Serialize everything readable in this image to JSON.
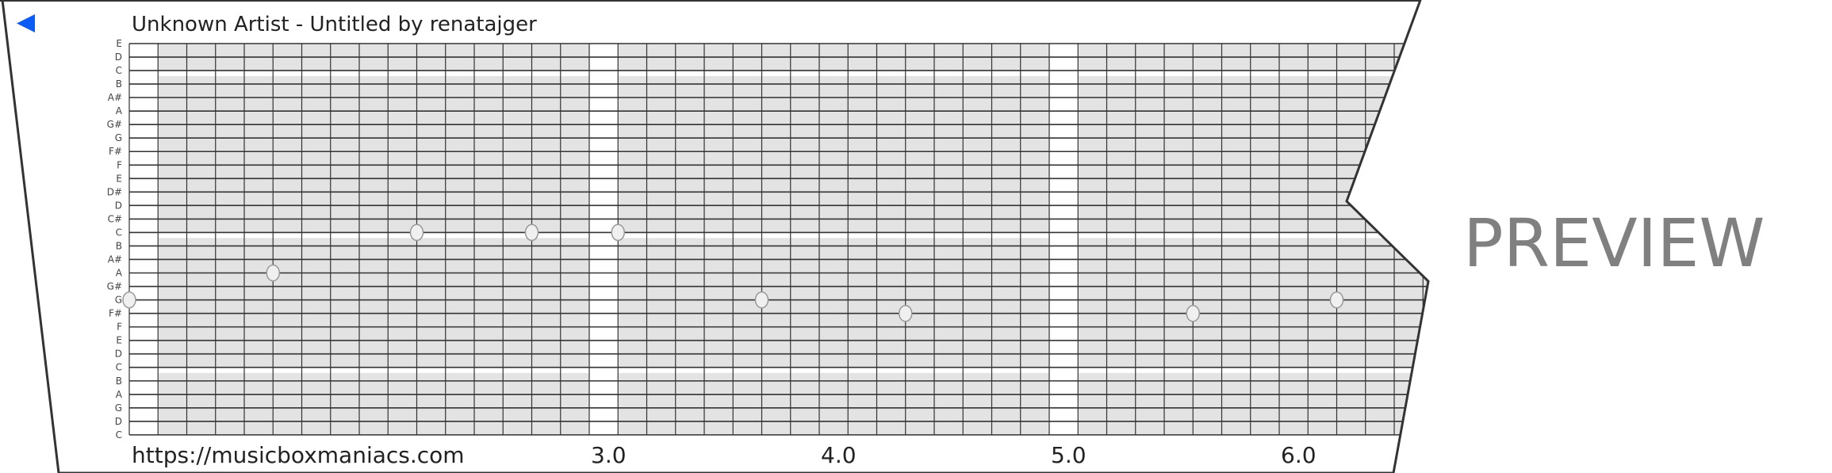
{
  "header": {
    "back_icon": "back-triangle-icon",
    "title": "Unknown Artist - Untitled by renatajger"
  },
  "footer": {
    "url": "https://musicboxmaniacs.com",
    "beat_labels": [
      {
        "beat": 3,
        "label": "3.0"
      },
      {
        "beat": 4,
        "label": "4.0"
      },
      {
        "beat": 5,
        "label": "5.0"
      },
      {
        "beat": 6,
        "label": "6.0"
      }
    ]
  },
  "watermark": "PREVIEW",
  "strip": {
    "note_labels": [
      "E",
      "D",
      "C",
      "B",
      "A#",
      "A",
      "G#",
      "G",
      "F#",
      "F",
      "E",
      "D#",
      "D",
      "C#",
      "C",
      "B",
      "A#",
      "A",
      "G#",
      "G",
      "F#",
      "F",
      "E",
      "D",
      "C",
      "B",
      "A",
      "G",
      "D",
      "C"
    ],
    "subdivisions_per_beat": 8,
    "start_beat": 1,
    "notes": [
      {
        "beat": 1.0,
        "row": 19,
        "pitch": "G"
      },
      {
        "beat": 1.625,
        "row": 17,
        "pitch": "A"
      },
      {
        "beat": 2.25,
        "row": 14,
        "pitch": "C"
      },
      {
        "beat": 2.75,
        "row": 14,
        "pitch": "C"
      },
      {
        "beat": 3.125,
        "row": 14,
        "pitch": "C"
      },
      {
        "beat": 3.75,
        "row": 19,
        "pitch": "G"
      },
      {
        "beat": 4.375,
        "row": 20,
        "pitch": "F#"
      },
      {
        "beat": 5.625,
        "row": 20,
        "pitch": "F#"
      },
      {
        "beat": 6.25,
        "row": 19,
        "pitch": "G"
      }
    ]
  },
  "colors": {
    "accent": "#0a5cf5",
    "cell": "#e3e3e3",
    "line": "#333333",
    "preview": "#808080"
  }
}
